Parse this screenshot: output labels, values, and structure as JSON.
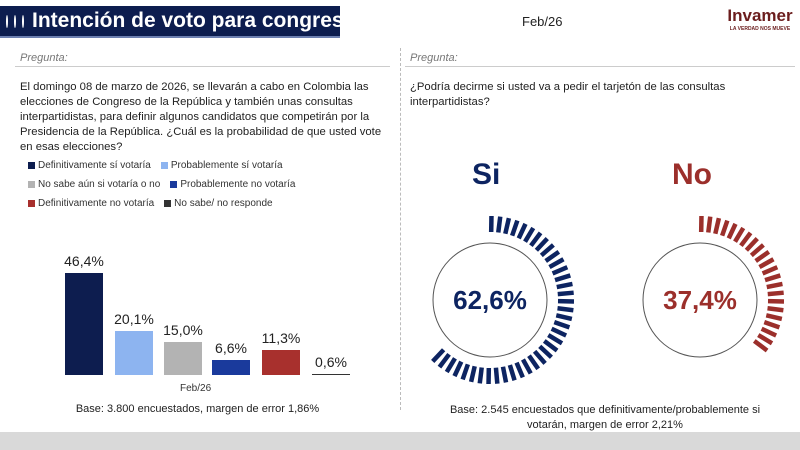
{
  "header": {
    "title": "Intención de voto para congreso y consultas",
    "date": "Feb/26",
    "dot_colors": [
      "#f5c400",
      "#1a3fb0",
      "#d01c2a"
    ],
    "logo_name": "Invamer",
    "logo_tagline": "LA VERDAD NOS MUEVE"
  },
  "left": {
    "label": "Pregunta:",
    "question": "El domingo 08 de marzo de 2026, se llevarán a cabo en Colombia las elecciones de Congreso de la República y también unas consultas interpartidistas, para definir algunos candidatos que competirán por la Presidencia de la República. ¿Cuál es la probabilidad de que usted vote en esas elecciones?",
    "chart_data": {
      "type": "bar",
      "categories": [
        "Definitivamente sí votaría",
        "Probablemente sí votaría",
        "No sabe aún si votaría o no",
        "Probablemente no votaría",
        "Definitivamente no votaría",
        "No sabe/ no responde"
      ],
      "series": [
        {
          "name": "Feb/26",
          "values": [
            46.4,
            20.1,
            15.0,
            6.6,
            11.3,
            0.6
          ]
        }
      ],
      "labels": [
        "46,4%",
        "20,1%",
        "15,0%",
        "6,6%",
        "11,3%",
        "0,6%"
      ],
      "colors": [
        "#0d1d4f",
        "#8db4f0",
        "#b3b3b3",
        "#1a3a9c",
        "#a8302d",
        "#333333"
      ],
      "xlabel": "Feb/26",
      "legend": "top"
    },
    "base": "Base: 3.800 encuestados, margen de error 1,86%"
  },
  "right": {
    "label": "Pregunta:",
    "question": "¿Podría decirme si usted va a pedir el tarjetón de las consultas interpartidistas?",
    "si": {
      "label": "Si",
      "value": "62,6%",
      "fraction": 0.626,
      "color": "#0d2461"
    },
    "no": {
      "label": "No",
      "value": "37,4%",
      "fraction": 0.374,
      "color": "#9b2f2b"
    },
    "base": "Base: 2.545 encuestados que definitivamente/probablemente si votarán, margen de error 2,21%"
  }
}
